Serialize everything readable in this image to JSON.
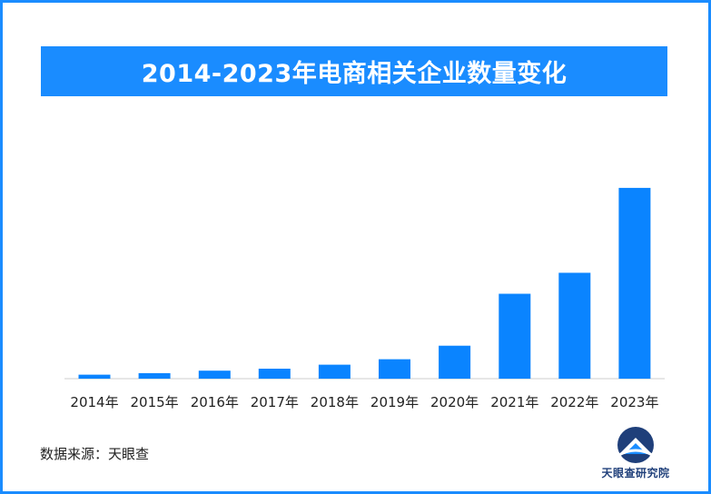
{
  "title": "2014-2023年电商相关企业数量变化",
  "source_label": "数据来源：天眼查",
  "logo_text": "天眼查研究院",
  "colors": {
    "accent": "#1a8cff",
    "bar": "#0a84ff",
    "axis": "#cccccc"
  },
  "chart_data": {
    "type": "bar",
    "categories": [
      "2014年",
      "2015年",
      "2016年",
      "2017年",
      "2018年",
      "2019年",
      "2020年",
      "2021年",
      "2022年",
      "2023年"
    ],
    "values": [
      4,
      5.5,
      8,
      10,
      14,
      19.5,
      33,
      85,
      106,
      191
    ],
    "title": "",
    "xlabel": "",
    "ylabel": "",
    "ylim": [
      0,
      200
    ],
    "grid": false,
    "legend": "none"
  }
}
